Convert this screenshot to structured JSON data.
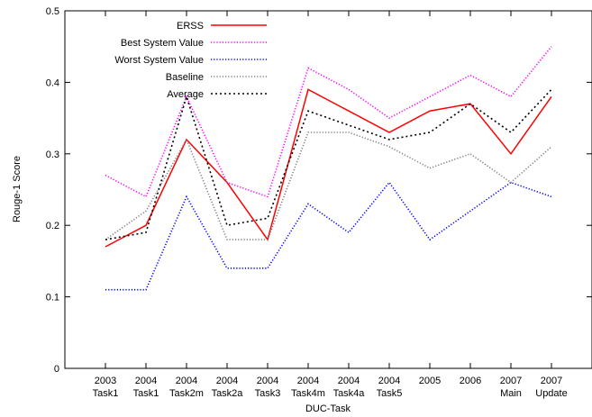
{
  "chart_data": {
    "type": "line",
    "title": "",
    "xlabel": "DUC-Task",
    "ylabel": "Rouge-1 Score",
    "ylim": [
      0,
      0.5
    ],
    "yticks": [
      "0",
      "0.1",
      "0.2",
      "0.3",
      "0.4",
      "0.5"
    ],
    "grid": false,
    "legend_position": "top-left",
    "categories": [
      [
        "2003",
        "Task1"
      ],
      [
        "2004",
        "Task1"
      ],
      [
        "2004",
        "Task2m"
      ],
      [
        "2004",
        "Task2a"
      ],
      [
        "2004",
        "Task3"
      ],
      [
        "2004",
        "Task4m"
      ],
      [
        "2004",
        "Task4a"
      ],
      [
        "2004",
        "Task5"
      ],
      [
        "2005",
        ""
      ],
      [
        "2006",
        ""
      ],
      [
        "2007",
        "Main"
      ],
      [
        "2007",
        "Update"
      ]
    ],
    "series": [
      {
        "name": "ERSS",
        "color": "#ff0000",
        "style": "solid",
        "values": [
          0.17,
          0.2,
          0.32,
          0.26,
          0.18,
          0.39,
          0.36,
          0.33,
          0.36,
          0.37,
          0.3,
          0.38
        ]
      },
      {
        "name": "Best System Value",
        "color": "#ff00ff",
        "style": "dotted",
        "values": [
          0.27,
          0.24,
          0.38,
          0.26,
          0.24,
          0.42,
          0.39,
          0.35,
          0.38,
          0.41,
          0.38,
          0.45
        ]
      },
      {
        "name": "Worst System Value",
        "color": "#0000ff",
        "style": "dotted",
        "values": [
          0.11,
          0.11,
          0.24,
          0.14,
          0.14,
          0.23,
          0.19,
          0.26,
          0.18,
          0.22,
          0.26,
          0.24
        ]
      },
      {
        "name": "Baseline",
        "color": "#808080",
        "style": "dotted",
        "values": [
          0.18,
          0.22,
          0.32,
          0.18,
          0.18,
          0.33,
          0.33,
          0.31,
          0.28,
          0.3,
          0.26,
          0.31
        ]
      },
      {
        "name": "Average",
        "color": "#000000",
        "style": "dotted",
        "values": [
          0.18,
          0.19,
          0.38,
          0.2,
          0.21,
          0.36,
          0.34,
          0.32,
          0.33,
          0.37,
          0.33,
          0.39
        ]
      }
    ]
  }
}
